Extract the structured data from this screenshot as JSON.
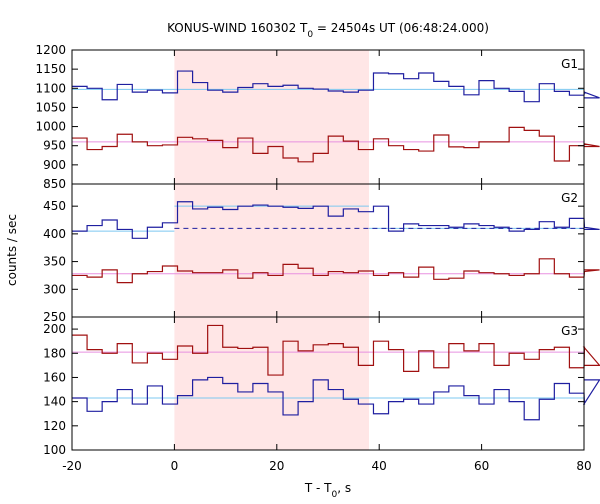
{
  "chart_data": {
    "type": "line",
    "title": "KONUS-WIND 160302 T",
    "title_sub": "0",
    "title_rest": " = 24504s UT (06:48:24.000)",
    "xlabel": "T - T",
    "xlabel_sub": "0",
    "xlabel_rest": ", s",
    "ylabel": "counts / sec",
    "xlim": [
      -20,
      80
    ],
    "x_ticks": [
      -20,
      0,
      20,
      40,
      60,
      80
    ],
    "x_tick_labels": [
      "-20",
      "0",
      "20",
      "40",
      "60",
      "80"
    ],
    "grid": false,
    "highlight_interval": [
      0,
      38
    ],
    "colors": {
      "highlight": "#ffe6e6",
      "blue_hist": "#1f1fa0",
      "red_hist": "#a01010",
      "blue_fit": "#7cc8f0",
      "red_fit": "#e890e0",
      "dashed": "#1f1fa0"
    },
    "bin_width": 2.944,
    "bin_start": -20,
    "panels": [
      {
        "label": "G1",
        "ylim": [
          850,
          1200
        ],
        "y_ticks": [
          850,
          900,
          950,
          1000,
          1050,
          1100,
          1150,
          1200
        ],
        "y_tick_labels": [
          "850",
          "900",
          "950",
          "1000",
          "1050",
          "1100",
          "1150",
          "1200"
        ],
        "fits": [
          {
            "color_key": "blue_fit",
            "value": 1097,
            "x": [
              -20,
              80
            ]
          },
          {
            "color_key": "red_fit",
            "value": 960,
            "x": [
              -20,
              80
            ]
          }
        ],
        "series": [
          {
            "color_key": "blue_hist",
            "values": [
              1105,
              1100,
              1070,
              1110,
              1090,
              1095,
              1088,
              1145,
              1115,
              1095,
              1090,
              1102,
              1112,
              1105,
              1108,
              1100,
              1098,
              1093,
              1090,
              1095,
              1140,
              1138,
              1125,
              1140,
              1118,
              1105,
              1083,
              1120,
              1100,
              1092,
              1065,
              1112,
              1092,
              1082,
              1090,
              1075
            ]
          },
          {
            "color_key": "red_hist",
            "values": [
              970,
              940,
              948,
              980,
              960,
              950,
              952,
              972,
              968,
              964,
              945,
              970,
              930,
              948,
              918,
              908,
              930,
              975,
              962,
              940,
              968,
              950,
              940,
              936,
              978,
              947,
              945,
              960,
              960,
              998,
              990,
              975,
              910,
              950,
              955,
              948
            ]
          }
        ],
        "dashed": []
      },
      {
        "label": "G2",
        "ylim": [
          250,
          490
        ],
        "y_ticks": [
          250,
          300,
          350,
          400,
          450
        ],
        "y_tick_labels": [
          "250",
          "300",
          "350",
          "400",
          "450"
        ],
        "fits": [
          {
            "color_key": "blue_fit",
            "value": 405,
            "x": [
              -20,
              0
            ]
          },
          {
            "color_key": "blue_fit",
            "value": 450,
            "x": [
              0,
              38
            ]
          },
          {
            "color_key": "blue_fit",
            "value": 410,
            "x": [
              38,
              80
            ]
          },
          {
            "color_key": "red_fit",
            "value": 328,
            "x": [
              -20,
              80
            ]
          }
        ],
        "series": [
          {
            "color_key": "blue_hist",
            "values": [
              405,
              415,
              425,
              408,
              392,
              412,
              420,
              458,
              445,
              448,
              444,
              450,
              452,
              450,
              448,
              446,
              450,
              432,
              445,
              440,
              450,
              405,
              418,
              415,
              415,
              412,
              418,
              415,
              412,
              405,
              408,
              422,
              412,
              428,
              412,
              408
            ]
          },
          {
            "color_key": "red_hist",
            "values": [
              325,
              322,
              335,
              312,
              328,
              332,
              342,
              333,
              330,
              330,
              335,
              320,
              330,
              325,
              345,
              338,
              325,
              332,
              330,
              333,
              325,
              330,
              322,
              340,
              318,
              320,
              333,
              330,
              328,
              325,
              328,
              355,
              328,
              322,
              332,
              335
            ]
          }
        ],
        "dashed": [
          {
            "color_key": "dashed",
            "value": 410,
            "x": [
              0,
              80
            ]
          }
        ]
      },
      {
        "label": "G3",
        "ylim": [
          100,
          210
        ],
        "y_ticks": [
          100,
          120,
          140,
          160,
          180,
          200
        ],
        "y_tick_labels": [
          "100",
          "120",
          "140",
          "160",
          "180",
          "200"
        ],
        "fits": [
          {
            "color_key": "red_fit",
            "value": 181,
            "x": [
              -20,
              80
            ]
          },
          {
            "color_key": "blue_fit",
            "value": 143,
            "x": [
              -20,
              80
            ]
          }
        ],
        "series": [
          {
            "color_key": "red_hist",
            "values": [
              195,
              183,
              180,
              188,
              172,
              180,
              175,
              186,
              180,
              203,
              185,
              184,
              185,
              162,
              190,
              182,
              187,
              188,
              185,
              170,
              190,
              183,
              165,
              182,
              168,
              188,
              182,
              188,
              170,
              180,
              175,
              183,
              185,
              168,
              185,
              170
            ]
          },
          {
            "color_key": "blue_hist",
            "values": [
              143,
              132,
              140,
              150,
              138,
              153,
              138,
              145,
              158,
              160,
              155,
              148,
              155,
              148,
              129,
              140,
              158,
              150,
              142,
              138,
              130,
              140,
              142,
              138,
              148,
              153,
              145,
              138,
              150,
              140,
              125,
              142,
              155,
              147,
              138,
              158
            ]
          }
        ],
        "dashed": []
      }
    ]
  }
}
